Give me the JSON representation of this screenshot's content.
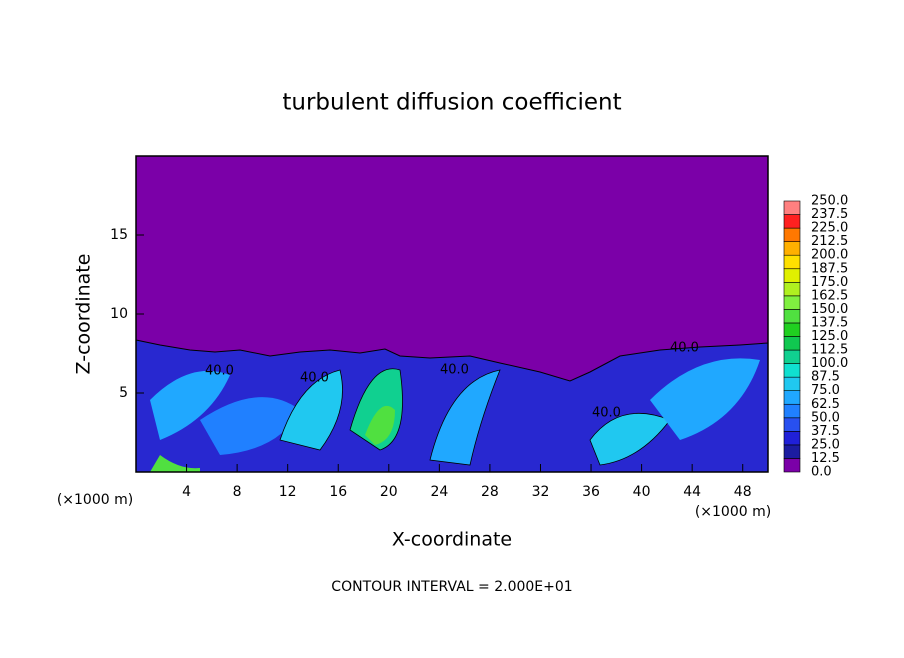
{
  "chart_data": {
    "type": "contour",
    "title": "turbulent diffusion coefficient",
    "xlabel": "X-coordinate",
    "ylabel": "Z-coordinate",
    "xunit": "(×1000 m)",
    "footer": "CONTOUR INTERVAL = 2.000E+01",
    "xlim": [
      0,
      50
    ],
    "ylim": [
      0,
      20
    ],
    "xticks": [
      4,
      8,
      12,
      16,
      20,
      24,
      28,
      32,
      36,
      40,
      44,
      48
    ],
    "yticks": [
      5,
      10,
      15
    ],
    "annotations": [
      "40.0",
      "40.0",
      "40.0",
      "40.0",
      "40.0"
    ],
    "colorbar": {
      "levels": [
        {
          "value": 0,
          "label": "0.0"
        },
        {
          "value": 12.5,
          "label": "12.5"
        },
        {
          "value": 25,
          "label": "25.0"
        },
        {
          "value": 37.5,
          "label": "37.5"
        },
        {
          "value": 50,
          "label": "50.0"
        },
        {
          "value": 62.5,
          "label": "62.5"
        },
        {
          "value": 75,
          "label": "75.0"
        },
        {
          "value": 87.5,
          "label": "87.5"
        },
        {
          "value": 100,
          "label": "100.0"
        },
        {
          "value": 112.5,
          "label": "112.5"
        },
        {
          "value": 125,
          "label": "125.0"
        },
        {
          "value": 137.5,
          "label": "137.5"
        },
        {
          "value": 150,
          "label": "150.0"
        },
        {
          "value": 162.5,
          "label": "162.5"
        },
        {
          "value": 175,
          "label": "175.0"
        },
        {
          "value": 187.5,
          "label": "187.5"
        },
        {
          "value": 200,
          "label": "200.0"
        },
        {
          "value": 212.5,
          "label": "212.5"
        },
        {
          "value": 225,
          "label": "225.0"
        },
        {
          "value": 237.5,
          "label": "237.5"
        },
        {
          "value": 250,
          "label": "250.0"
        }
      ],
      "colors": [
        "#7b00a8",
        "#1c1ca0",
        "#2020d8",
        "#2850f0",
        "#2080ff",
        "#20a8ff",
        "#20c8f0",
        "#10e0d0",
        "#10d090",
        "#10c850",
        "#20d020",
        "#50e040",
        "#80f040",
        "#b0f020",
        "#e0f000",
        "#ffe000",
        "#ffb000",
        "#ff7800",
        "#ff2020",
        "#ff8080"
      ]
    }
  }
}
